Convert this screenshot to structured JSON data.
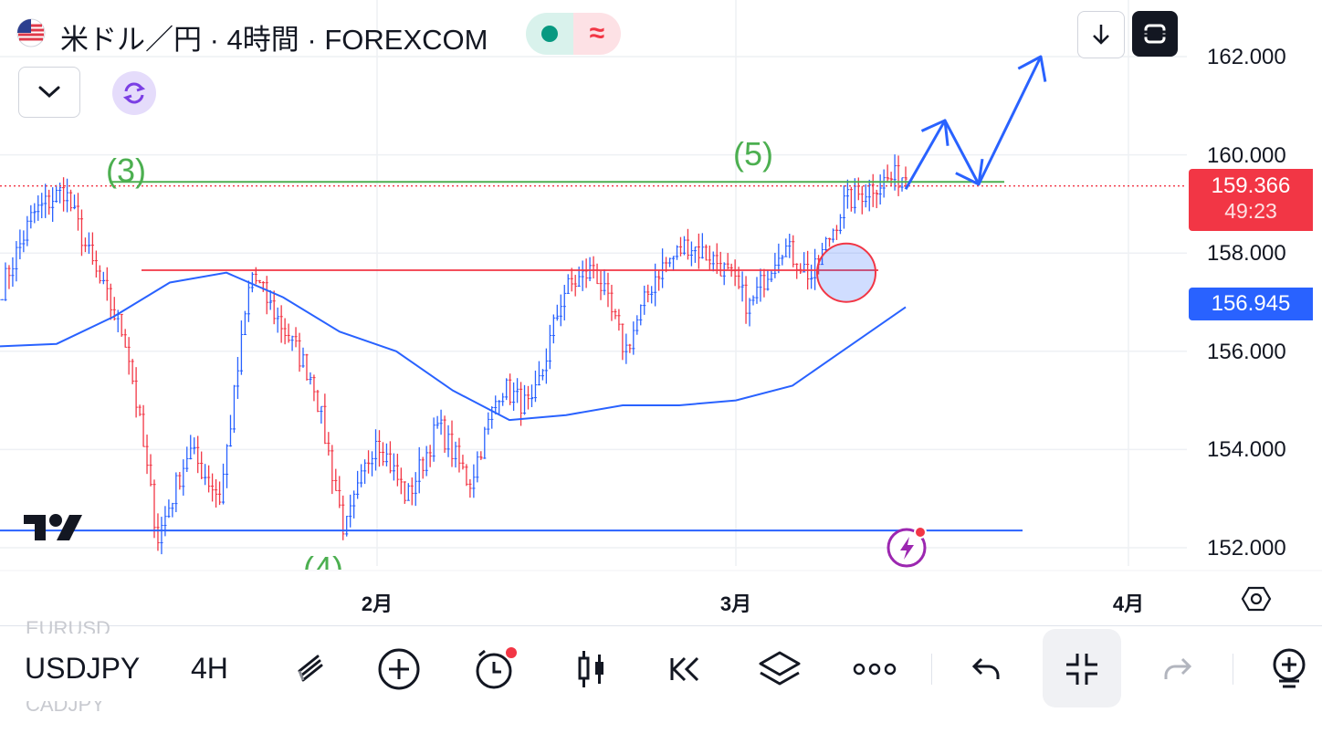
{
  "header": {
    "symbol_title": "米ドル／円 · 4時間 · FOREXCOM",
    "flag_icon": "us-flag-icon",
    "status_icons": [
      "market-open-dot-icon",
      "wave-indicator-icon"
    ]
  },
  "chart_data": {
    "type": "candlestick",
    "symbol": "USDJPY",
    "timeframe": "4H",
    "yticks": [
      "162.000",
      "160.000",
      "158.000",
      "156.000",
      "154.000",
      "152.000"
    ],
    "ylim": [
      151.7,
      162.7
    ],
    "xticks": [
      "2月",
      "3月",
      "4月"
    ],
    "last_price": "159.366",
    "countdown": "49:23",
    "ma_price": "156.945",
    "wave_labels": [
      "(3)",
      "(4)",
      "(5)"
    ],
    "horizontal_levels": {
      "resistance_green": 159.45,
      "support_red": 157.65,
      "support_blue": 152.35
    },
    "anchor_prices": [
      157.3,
      158.8,
      159.3,
      157.6,
      156.2,
      152.2,
      154.0,
      153.0,
      157.6,
      156.5,
      155.4,
      152.3,
      154.3,
      153.0,
      154.5,
      153.3,
      155.3,
      154.8,
      157.2,
      157.7,
      156.0,
      157.6,
      158.2,
      157.8,
      156.9,
      158.2,
      157.5,
      159.0,
      159.4,
      159.6
    ],
    "ma_points": [
      [
        0,
        156.1
      ],
      [
        0.05,
        156.15
      ],
      [
        0.1,
        156.7
      ],
      [
        0.15,
        157.4
      ],
      [
        0.2,
        157.6
      ],
      [
        0.25,
        157.1
      ],
      [
        0.3,
        156.4
      ],
      [
        0.35,
        156.0
      ],
      [
        0.4,
        155.2
      ],
      [
        0.45,
        154.6
      ],
      [
        0.5,
        154.7
      ],
      [
        0.55,
        154.9
      ],
      [
        0.6,
        154.9
      ],
      [
        0.65,
        155.0
      ],
      [
        0.7,
        155.3
      ],
      [
        0.75,
        156.1
      ],
      [
        0.8,
        156.9
      ]
    ],
    "projection": [
      159.3,
      160.7,
      159.4,
      162.0,
      161.5
    ],
    "colors": {
      "up": "#2962ff",
      "down": "#f23645",
      "ma": "#2962ff",
      "green_line": "#4caf50",
      "red_line": "#f23645",
      "projection": "#2962ff",
      "price_tag": "#f23645",
      "ma_tag": "#2962ff"
    }
  },
  "toolbar": {
    "symbol": "USDJPY",
    "symbol_prev": "EURUSD",
    "symbol_next": "CADJPY",
    "interval": "4H",
    "icons": [
      "drawing-tools-icon",
      "add-indicator-icon",
      "alert-icon",
      "candle-style-icon",
      "replay-icon",
      "layers-icon",
      "more-icon",
      "undo-icon",
      "collapse-icon",
      "redo-icon",
      "add-symbol-icon"
    ]
  }
}
